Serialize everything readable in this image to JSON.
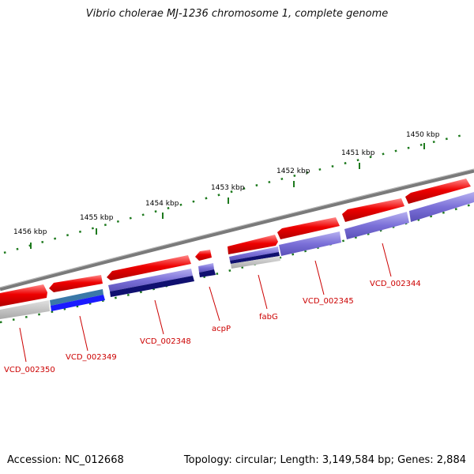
{
  "title": "Vibrio cholerae MJ-1236 chromosome 1, complete genome",
  "footer": {
    "accession": "Accession: NC_012668",
    "summary": "Topology: circular; Length: 3,149,584 bp; Genes: 2,884"
  },
  "ruler": {
    "labels": [
      "1456 kbp",
      "1455 kbp",
      "1454 kbp",
      "1453 kbp",
      "1452 kbp",
      "1451 kbp",
      "1450 kbp"
    ]
  },
  "genes": [
    {
      "name": "VCD_002350"
    },
    {
      "name": "VCD_002349"
    },
    {
      "name": "VCD_002348"
    },
    {
      "name": "acpP"
    },
    {
      "name": "fabG"
    },
    {
      "name": "VCD_002345"
    },
    {
      "name": "VCD_002344"
    }
  ],
  "colors": {
    "feature_red": "#ee0000",
    "cds_purple": "#7b70d8",
    "dark_navy": "#101070",
    "bright_blue": "#1a1aff",
    "teal_blue": "#3a78a8",
    "backbone_gray": "#7a7a7a",
    "ruler_green": "#1e7a1e",
    "label_red": "#cc0000"
  }
}
